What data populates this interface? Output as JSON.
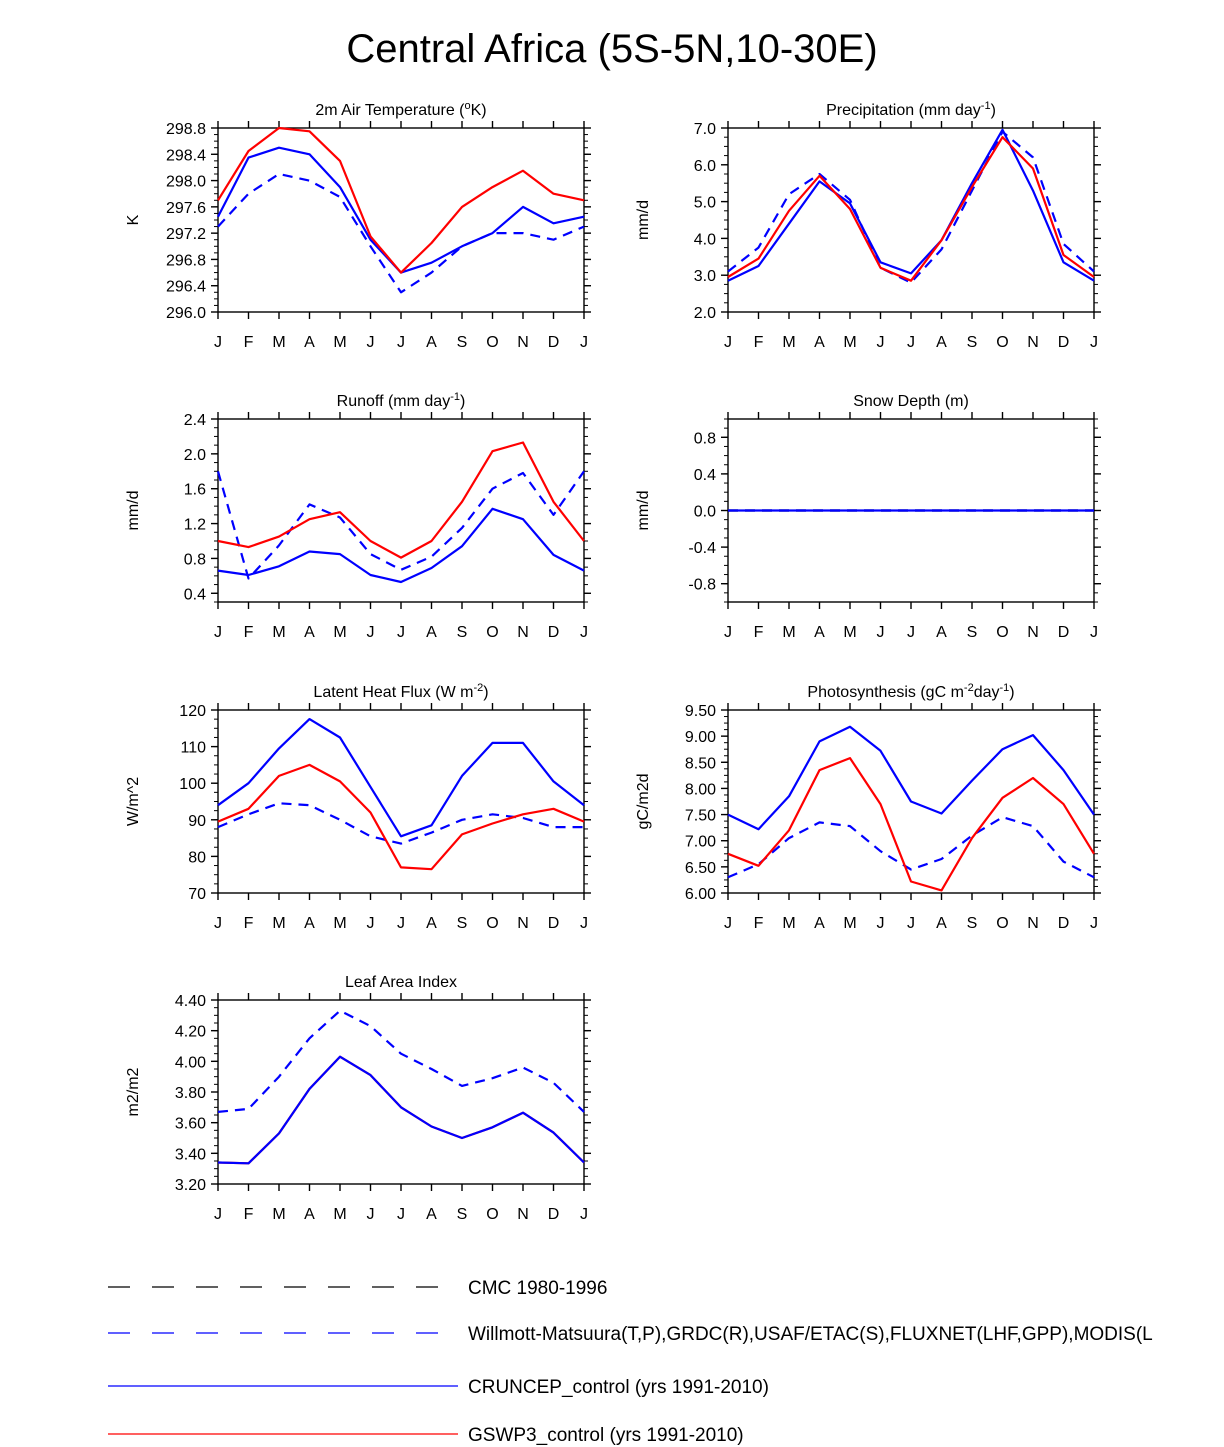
{
  "title": "Central Africa (5S-5N,10-30E)",
  "colors": {
    "red": "#ff0000",
    "blue": "#0000ff",
    "dash_black": "#000000"
  },
  "legend": [
    {
      "label": "CMC 1980-1996",
      "color": "#000000",
      "style": "dashed"
    },
    {
      "label": "Willmott-Matsuura(T,P),GRDC(R),USAF/ETAC(S),FLUXNET(LHF,GPP),MODIS(L",
      "color": "#0000ff",
      "style": "dashed"
    },
    {
      "label": "CRUNCEP_control (yrs 1991-2010)",
      "color": "#0000ff",
      "style": "solid"
    },
    {
      "label": "GSWP3_control (yrs 1991-2010)",
      "color": "#ff0000",
      "style": "solid"
    }
  ],
  "chart_data": [
    {
      "type": "line",
      "title": "2m Air Temperature (",
      "title_sup": "o",
      "title_after": "K)",
      "title_sup2": "",
      "title_after2": "",
      "ylabel": "K",
      "categories": [
        "J",
        "F",
        "M",
        "A",
        "M",
        "J",
        "J",
        "A",
        "S",
        "O",
        "N",
        "D",
        "J"
      ],
      "ylim": [
        296.0,
        298.8
      ],
      "yticks": [
        296.0,
        296.4,
        296.8,
        297.2,
        297.6,
        298.0,
        298.4,
        298.8
      ],
      "ytick_labels": [
        "296.0",
        "296.4",
        "296.8",
        "297.2",
        "297.6",
        "298.0",
        "298.4",
        "298.8"
      ],
      "series": [
        {
          "name": "Willmott-Matsuura",
          "style": "dashed",
          "color": "#0000ff",
          "values": [
            297.3,
            297.8,
            298.1,
            298.0,
            297.75,
            297.0,
            296.3,
            296.6,
            297.0,
            297.2,
            297.2,
            297.1,
            297.3
          ]
        },
        {
          "name": "CRUNCEP_control",
          "style": "solid",
          "color": "#0000ff",
          "values": [
            297.45,
            298.35,
            298.5,
            298.4,
            297.9,
            297.1,
            296.6,
            296.75,
            297.0,
            297.2,
            297.6,
            297.35,
            297.45
          ]
        },
        {
          "name": "GSWP3_control",
          "style": "solid",
          "color": "#ff0000",
          "values": [
            297.7,
            298.45,
            298.8,
            298.75,
            298.3,
            297.15,
            296.6,
            297.05,
            297.6,
            297.9,
            298.15,
            297.8,
            297.7
          ]
        }
      ]
    },
    {
      "type": "line",
      "title": "Precipitation (mm day",
      "title_sup": "-1",
      "title_after": ")",
      "title_sup2": "",
      "title_after2": "",
      "ylabel": "mm/d",
      "categories": [
        "J",
        "F",
        "M",
        "A",
        "M",
        "J",
        "J",
        "A",
        "S",
        "O",
        "N",
        "D",
        "J"
      ],
      "ylim": [
        2.0,
        7.0
      ],
      "yticks": [
        2.0,
        3.0,
        4.0,
        5.0,
        6.0,
        7.0
      ],
      "ytick_labels": [
        "2.0",
        "3.0",
        "4.0",
        "5.0",
        "6.0",
        "7.0"
      ],
      "series": [
        {
          "name": "Willmott-Matsuura",
          "style": "dashed",
          "color": "#0000ff",
          "values": [
            3.1,
            3.75,
            5.2,
            5.75,
            5.05,
            3.2,
            2.8,
            3.7,
            5.3,
            6.9,
            6.2,
            3.85,
            3.1
          ]
        },
        {
          "name": "CRUNCEP_control",
          "style": "solid",
          "color": "#0000ff",
          "values": [
            2.85,
            3.25,
            4.4,
            5.55,
            4.95,
            3.35,
            3.05,
            3.95,
            5.5,
            6.95,
            5.3,
            3.35,
            2.85
          ]
        },
        {
          "name": "GSWP3_control",
          "style": "solid",
          "color": "#ff0000",
          "values": [
            2.95,
            3.45,
            4.75,
            5.7,
            4.8,
            3.2,
            2.85,
            3.95,
            5.4,
            6.75,
            5.9,
            3.55,
            2.95
          ]
        }
      ]
    },
    {
      "type": "line",
      "title": "Runoff (mm day",
      "title_sup": "-1",
      "title_after": ")",
      "title_sup2": "",
      "title_after2": "",
      "ylabel": "mm/d",
      "categories": [
        "J",
        "F",
        "M",
        "A",
        "M",
        "J",
        "J",
        "A",
        "S",
        "O",
        "N",
        "D",
        "J"
      ],
      "ylim": [
        0.3,
        2.4
      ],
      "yticks": [
        0.4,
        0.8,
        1.2,
        1.6,
        2.0,
        2.4
      ],
      "ytick_labels": [
        "0.4",
        "0.8",
        "1.2",
        "1.6",
        "2.0",
        "2.4"
      ],
      "series": [
        {
          "name": "GRDC",
          "style": "dashed",
          "color": "#0000ff",
          "values": [
            1.8,
            0.57,
            0.95,
            1.42,
            1.27,
            0.85,
            0.67,
            0.82,
            1.15,
            1.6,
            1.78,
            1.3,
            1.8
          ]
        },
        {
          "name": "CRUNCEP_control",
          "style": "solid",
          "color": "#0000ff",
          "values": [
            0.66,
            0.61,
            0.71,
            0.88,
            0.85,
            0.61,
            0.53,
            0.69,
            0.94,
            1.37,
            1.25,
            0.84,
            0.66
          ]
        },
        {
          "name": "GSWP3_control",
          "style": "solid",
          "color": "#ff0000",
          "values": [
            1.0,
            0.93,
            1.05,
            1.25,
            1.33,
            1.0,
            0.81,
            1.0,
            1.45,
            2.03,
            2.13,
            1.45,
            1.0
          ]
        }
      ]
    },
    {
      "type": "line",
      "title": "Snow Depth (m)",
      "title_sup": "",
      "title_after": "",
      "title_sup2": "",
      "title_after2": "",
      "ylabel": "mm/d",
      "categories": [
        "J",
        "F",
        "M",
        "A",
        "M",
        "J",
        "J",
        "A",
        "S",
        "O",
        "N",
        "D",
        "J"
      ],
      "ylim": [
        -1.0,
        1.0
      ],
      "yticks": [
        -0.8,
        -0.4,
        0.0,
        0.4,
        0.8
      ],
      "ytick_labels": [
        "-0.8",
        "-0.4",
        "0.0",
        "0.4",
        "0.8"
      ],
      "series": [
        {
          "name": "CRUNCEP_control",
          "style": "solid",
          "color": "#0000ff",
          "values": [
            0,
            0,
            0,
            0,
            0,
            0,
            0,
            0,
            0,
            0,
            0,
            0,
            0
          ]
        },
        {
          "name": "CMC",
          "style": "dashed",
          "color": "#000000",
          "values": [
            0,
            0,
            0,
            0,
            0,
            0,
            0,
            0,
            0,
            0,
            0,
            0,
            0
          ]
        },
        {
          "name": "USAF/ETAC",
          "style": "dashed",
          "color": "#0000ff",
          "values": [
            0,
            0,
            0,
            0,
            0,
            0,
            0,
            0,
            0,
            0,
            0,
            0,
            0
          ]
        }
      ]
    },
    {
      "type": "line",
      "title": "Latent Heat Flux (W m",
      "title_sup": "-2",
      "title_after": ")",
      "title_sup2": "",
      "title_after2": "",
      "ylabel": "W/m^2",
      "categories": [
        "J",
        "F",
        "M",
        "A",
        "M",
        "J",
        "J",
        "A",
        "S",
        "O",
        "N",
        "D",
        "J"
      ],
      "ylim": [
        70,
        120
      ],
      "yticks": [
        70,
        80,
        90,
        100,
        110,
        120
      ],
      "ytick_labels": [
        "70",
        "80",
        "90",
        "100",
        "110",
        "120"
      ],
      "series": [
        {
          "name": "FLUXNET",
          "style": "dashed",
          "color": "#0000ff",
          "values": [
            88.0,
            91.5,
            94.5,
            94.0,
            90.0,
            85.5,
            83.5,
            86.5,
            90.0,
            91.5,
            90.5,
            88.0,
            88.0
          ]
        },
        {
          "name": "CRUNCEP_control",
          "style": "solid",
          "color": "#0000ff",
          "values": [
            94.0,
            100.0,
            109.5,
            117.5,
            112.5,
            99.0,
            85.5,
            88.5,
            102.0,
            111.0,
            111.0,
            100.5,
            94.0
          ]
        },
        {
          "name": "GSWP3_control",
          "style": "solid",
          "color": "#ff0000",
          "values": [
            89.5,
            93.0,
            102.0,
            105.0,
            100.5,
            92.0,
            77.0,
            76.5,
            86.0,
            89.0,
            91.5,
            93.0,
            89.5
          ]
        }
      ]
    },
    {
      "type": "line",
      "title": "Photosynthesis (gC m",
      "title_sup": "-2",
      "title_after": "day",
      "title_sup2": "-1",
      "title_after2": ")",
      "ylabel": "gC/m2d",
      "categories": [
        "J",
        "F",
        "M",
        "A",
        "M",
        "J",
        "J",
        "A",
        "S",
        "O",
        "N",
        "D",
        "J"
      ],
      "ylim": [
        6.0,
        9.5
      ],
      "yticks": [
        6.0,
        6.5,
        7.0,
        7.5,
        8.0,
        8.5,
        9.0,
        9.5
      ],
      "ytick_labels": [
        "6.00",
        "6.50",
        "7.00",
        "7.50",
        "8.00",
        "8.50",
        "9.00",
        "9.50"
      ],
      "series": [
        {
          "name": "FLUXNET",
          "style": "dashed",
          "color": "#0000ff",
          "values": [
            6.3,
            6.55,
            7.05,
            7.35,
            7.28,
            6.8,
            6.45,
            6.65,
            7.1,
            7.45,
            7.28,
            6.6,
            6.3
          ]
        },
        {
          "name": "CRUNCEP_control",
          "style": "solid",
          "color": "#0000ff",
          "values": [
            7.5,
            7.22,
            7.85,
            8.9,
            9.18,
            8.72,
            7.75,
            7.52,
            8.15,
            8.75,
            9.02,
            8.35,
            7.5
          ]
        },
        {
          "name": "GSWP3_control",
          "style": "solid",
          "color": "#ff0000",
          "values": [
            6.75,
            6.52,
            7.2,
            8.35,
            8.58,
            7.7,
            6.22,
            6.05,
            7.05,
            7.82,
            8.2,
            7.7,
            6.75
          ]
        }
      ]
    },
    {
      "type": "line",
      "title": "Leaf Area Index",
      "title_sup": "",
      "title_after": "",
      "title_sup2": "",
      "title_after2": "",
      "ylabel": "m2/m2",
      "categories": [
        "J",
        "F",
        "M",
        "A",
        "M",
        "J",
        "J",
        "A",
        "S",
        "O",
        "N",
        "D",
        "J"
      ],
      "ylim": [
        3.2,
        4.4
      ],
      "yticks": [
        3.2,
        3.4,
        3.6,
        3.8,
        4.0,
        4.2,
        4.4
      ],
      "ytick_labels": [
        "3.20",
        "3.40",
        "3.60",
        "3.80",
        "4.00",
        "4.20",
        "4.40"
      ],
      "series": [
        {
          "name": "MODIS",
          "style": "dashed",
          "color": "#0000ff",
          "values": [
            3.67,
            3.69,
            3.9,
            4.15,
            4.33,
            4.23,
            4.05,
            3.95,
            3.84,
            3.89,
            3.96,
            3.86,
            3.67
          ]
        },
        {
          "name": "GSWP3_control",
          "style": "solid",
          "color": "#ff0000",
          "values": [
            3.34,
            3.335,
            3.53,
            3.82,
            4.03,
            3.91,
            3.7,
            3.575,
            3.5,
            3.57,
            3.665,
            3.535,
            3.34
          ]
        },
        {
          "name": "CRUNCEP_control",
          "style": "solid",
          "color": "#0000ff",
          "values": [
            3.34,
            3.335,
            3.53,
            3.82,
            4.03,
            3.91,
            3.7,
            3.575,
            3.5,
            3.57,
            3.665,
            3.535,
            3.34
          ]
        }
      ]
    }
  ]
}
